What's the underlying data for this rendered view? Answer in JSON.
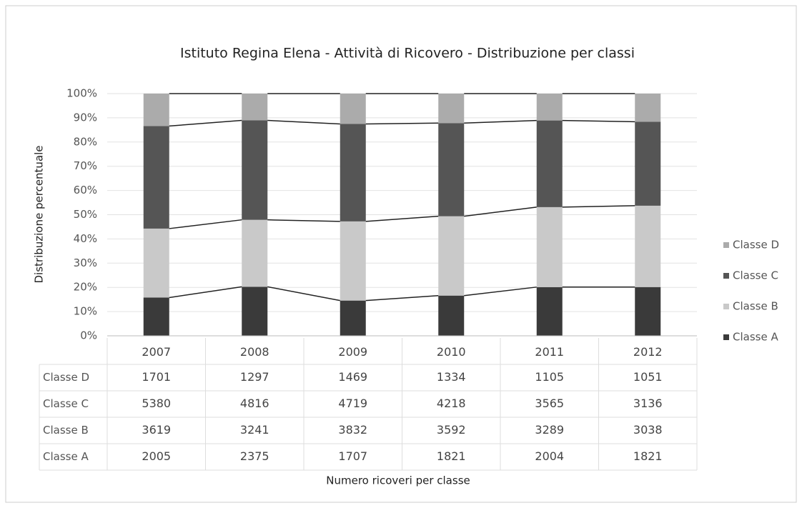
{
  "chart_data": {
    "type": "bar",
    "stacking": "percent",
    "series_lines": true,
    "grid": true,
    "data_table": true,
    "title": "Istituto Regina Elena - Attività di Ricovero - Distribuzione per classi",
    "y_label": "Distribuzione percentuale",
    "x_label": "Numero ricoveri per classe",
    "legend": "right",
    "categories": [
      "2007",
      "2008",
      "2009",
      "2010",
      "2011",
      "2012"
    ],
    "series": [
      {
        "name": "Classe A",
        "color": "#3a3a3a",
        "values": [
          2005,
          2375,
          1707,
          1821,
          2004,
          1821
        ]
      },
      {
        "name": "Classe B",
        "color": "#c9c9c9",
        "values": [
          3619,
          3241,
          3832,
          3592,
          3289,
          3038
        ]
      },
      {
        "name": "Classe C",
        "color": "#555555",
        "values": [
          5380,
          4816,
          4719,
          4218,
          3565,
          3136
        ]
      },
      {
        "name": "Classe D",
        "color": "#ababab",
        "values": [
          1701,
          1297,
          1469,
          1334,
          1105,
          1051
        ]
      }
    ],
    "ylim": [
      0,
      100
    ],
    "yticks": [
      {
        "value": 0,
        "label": "0%"
      },
      {
        "value": 10,
        "label": "10%"
      },
      {
        "value": 20,
        "label": "20%"
      },
      {
        "value": 30,
        "label": "30%"
      },
      {
        "value": 40,
        "label": "40%"
      },
      {
        "value": 50,
        "label": "50%"
      },
      {
        "value": 60,
        "label": "60%"
      },
      {
        "value": 70,
        "label": "70%"
      },
      {
        "value": 80,
        "label": "80%"
      },
      {
        "value": 90,
        "label": "90%"
      },
      {
        "value": 100,
        "label": "100%"
      }
    ]
  }
}
